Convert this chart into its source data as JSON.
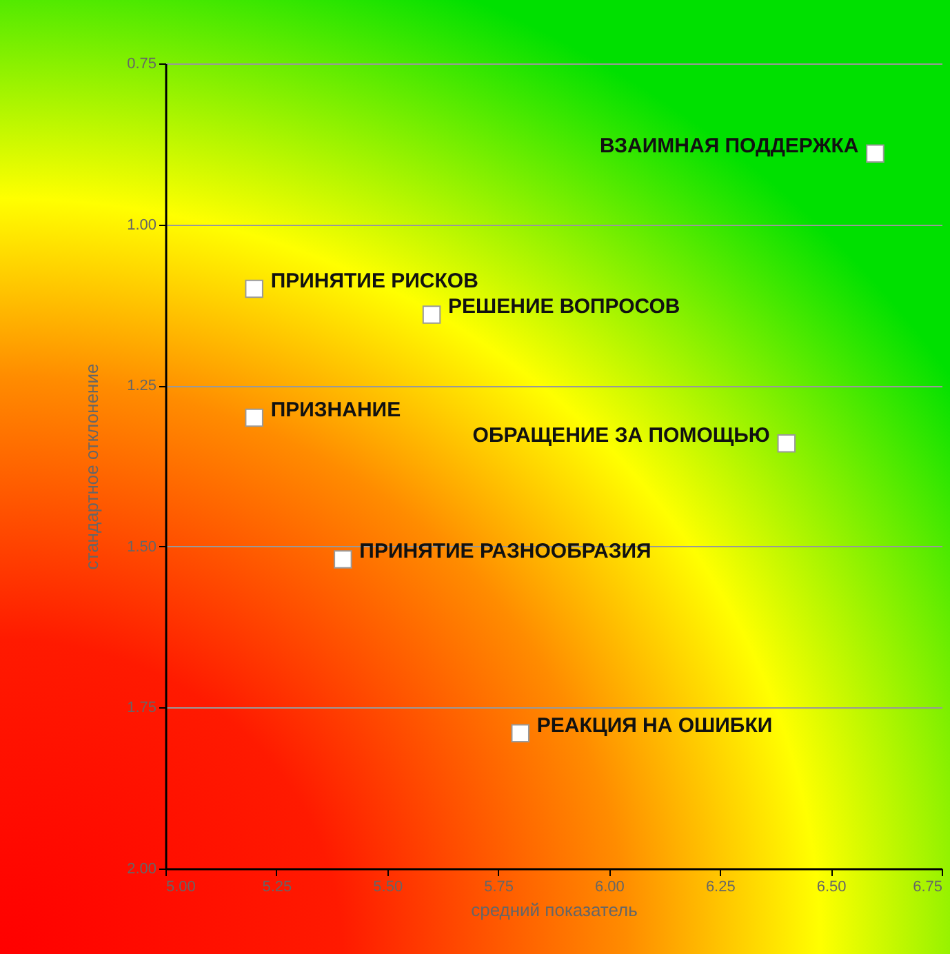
{
  "chart_data": {
    "type": "scatter",
    "xlabel": "средний показатель",
    "ylabel": "стандартное отклонение",
    "x": [
      6.6,
      5.2,
      5.6,
      5.2,
      6.4,
      5.4,
      5.8
    ],
    "series": [
      {
        "color": "#ffffff",
        "values": [
          0.89,
          1.1,
          1.14,
          1.3,
          1.34,
          1.52,
          1.79
        ]
      }
    ],
    "marker": "square",
    "grid": "y",
    "xlim": [
      5.0,
      6.75
    ],
    "xticks": [
      {
        "value": 5.0,
        "label": "5.00"
      },
      {
        "value": 5.25,
        "label": "5.25"
      },
      {
        "value": 5.5,
        "label": "5.50"
      },
      {
        "value": 5.75,
        "label": "5.75"
      },
      {
        "value": 6.0,
        "label": "6.00"
      },
      {
        "value": 6.25,
        "label": "6.25"
      },
      {
        "value": 6.5,
        "label": "6.50"
      },
      {
        "value": 6.75,
        "label": "6.75"
      }
    ],
    "ylim": [
      2.0,
      0.75
    ],
    "yticks": [
      {
        "value": 0.75,
        "label": "0.75"
      },
      {
        "value": 1.0,
        "label": "1.00"
      },
      {
        "value": 1.25,
        "label": "1.25"
      },
      {
        "value": 1.5,
        "label": "1.50"
      },
      {
        "value": 1.75,
        "label": "1.75"
      },
      {
        "value": 2.0,
        "label": "2.00"
      }
    ],
    "annotations": [
      {
        "text": "ВЗАИМНАЯ ПОДДЕРЖКА",
        "x": 6.6,
        "y": 0.89
      },
      {
        "text": "ПРИНЯТИЕ РИСКОВ",
        "x": 5.2,
        "y": 1.1
      },
      {
        "text": "РЕШЕНИЕ ВОПРОСОВ",
        "x": 5.6,
        "y": 1.14
      },
      {
        "text": "ПРИЗНАНИЕ",
        "x": 5.2,
        "y": 1.3
      },
      {
        "text": "ОБРАЩЕНИЕ ЗА ПОМОЩЬЮ",
        "x": 6.4,
        "y": 1.34
      },
      {
        "text": "ПРИНЯТИЕ РАЗНООБРАЗИЯ",
        "x": 5.4,
        "y": 1.52
      },
      {
        "text": "РЕАКЦИЯ НА ОШИБКИ",
        "x": 5.8,
        "y": 1.79
      }
    ]
  }
}
